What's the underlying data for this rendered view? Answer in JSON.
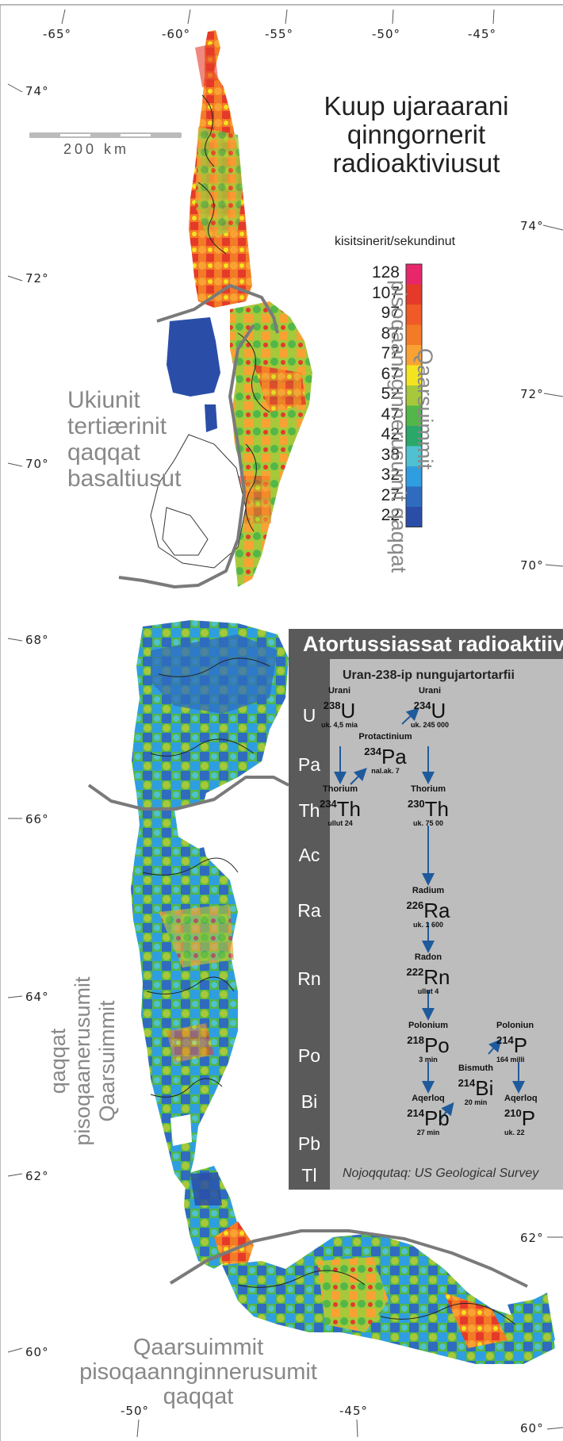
{
  "map": {
    "title_lines": [
      "Kuup ujaraarani",
      "qinngornerit",
      "radioaktiviusut"
    ],
    "legend": {
      "unit": "kisitsinerit/sekundinut",
      "values": [
        "128",
        "107",
        "97",
        "87",
        "77",
        "67",
        "52",
        "47",
        "42",
        "38",
        "32",
        "27",
        "22"
      ],
      "colors": [
        "#e8276b",
        "#e53a2a",
        "#ef5a26",
        "#f37a26",
        "#f9a233",
        "#f4e31f",
        "#a6c83a",
        "#52b748",
        "#2aa86a",
        "#4fc1d0",
        "#2f9ee0",
        "#2f6cc0",
        "#2a4ea8"
      ]
    },
    "scale_bar_label": "200 km",
    "top_longitudes": [
      "-65°",
      "-60°",
      "-55°",
      "-50°",
      "-45°"
    ],
    "bottom_longitudes": [
      "-50°",
      "-45°"
    ],
    "left_latitudes": [
      "74°",
      "72°",
      "70°",
      "68°",
      "66°",
      "64°",
      "62°",
      "60°"
    ],
    "right_latitudes": [
      "74°",
      "72°",
      "70°",
      "62°",
      "60°"
    ],
    "regions": {
      "ukiunit": [
        "Ukiunit",
        "tertiærinit",
        "qaqqat",
        "basaltiusut"
      ],
      "east_vertical": [
        "Qaarsuimmit",
        "pisoqaannginnerusumit qaqqat"
      ],
      "west_vertical": [
        "Qaarsuimmit",
        "pisoqaanerusumit",
        "qaqqat"
      ],
      "south": [
        "Qaarsuimmit",
        "pisoqaannginnerusumit",
        "qaqqat"
      ]
    }
  },
  "decay": {
    "header": "Atortussiassat radioaktiiv",
    "subtitle": "Uran-238-ip nungujartortarfii",
    "elements": [
      "U",
      "Pa",
      "Th",
      "Ac",
      "Ra",
      "Rn",
      "Po",
      "Bi",
      "Pb",
      "Tl"
    ],
    "isotopes": {
      "u238": {
        "name": "Urani",
        "mass": "238",
        "symbol": "U",
        "half_life": "uk. 4,5 mia"
      },
      "u234": {
        "name": "Urani",
        "mass": "234",
        "symbol": "U",
        "half_life": "uk. 245 000"
      },
      "pa234": {
        "name": "Protactinium",
        "mass": "234",
        "symbol": "Pa",
        "half_life": "nal.ak. 7"
      },
      "th234": {
        "name": "Thorium",
        "mass": "234",
        "symbol": "Th",
        "half_life": "ullut 24"
      },
      "th230": {
        "name": "Thorium",
        "mass": "230",
        "symbol": "Th",
        "half_life": "uk. 75 00"
      },
      "ra226": {
        "name": "Radium",
        "mass": "226",
        "symbol": "Ra",
        "half_life": "uk. 1 600"
      },
      "rn222": {
        "name": "Radon",
        "mass": "222",
        "symbol": "Rn",
        "half_life": "ullut 4"
      },
      "po218": {
        "name": "Polonium",
        "mass": "218",
        "symbol": "Po",
        "half_life": "3 min"
      },
      "po214": {
        "name": "Poloniun",
        "mass": "214",
        "symbol": "P",
        "half_life": "164 milli"
      },
      "bi214": {
        "name": "Bismuth",
        "mass": "214",
        "symbol": "Bi",
        "half_life": "20 min"
      },
      "pb214": {
        "name": "Aqerloq",
        "mass": "214",
        "symbol": "Pb",
        "half_life": "27 min"
      },
      "pb210": {
        "name": "Aqerloq",
        "mass": "210",
        "symbol": "P",
        "half_life": "uk. 22"
      }
    },
    "source": "Nojoqqutaq: US Geological Survey"
  }
}
